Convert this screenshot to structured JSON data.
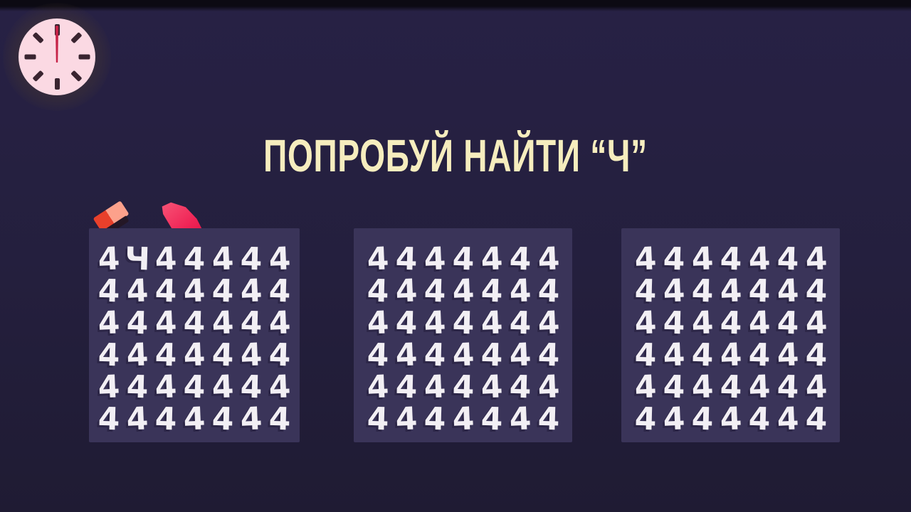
{
  "title": "ПОПРОБУЙ НАЙТИ “Ч”",
  "target_letter": "Ч",
  "filler_digit": "4",
  "hidden_letter_position": {
    "grid": 1,
    "row": 1,
    "column": 2
  },
  "grids": [
    {
      "name": "left",
      "rows": [
        "4Ч44444",
        "4444444",
        "4444444",
        "4444444",
        "4444444",
        "4444444"
      ]
    },
    {
      "name": "center",
      "rows": [
        "4444444",
        "4444444",
        "4444444",
        "4444444",
        "4444444",
        "4444444"
      ]
    },
    {
      "name": "right",
      "rows": [
        "4444444",
        "4444444",
        "4444444",
        "4444444",
        "4444444",
        "4444444"
      ]
    }
  ],
  "icons": {
    "clock": "analog clock pointing to 12"
  },
  "colors": {
    "background": "#241f3d",
    "panel": "#3a3459",
    "digit": "#f2eff4",
    "title": "#f6edbe",
    "clock_face": "#fbd9e3",
    "clock_tick": "#3a2430",
    "clock_hand": "#c62348",
    "accent_red": "#ef2456",
    "accent_salmon": "#fca18b"
  }
}
